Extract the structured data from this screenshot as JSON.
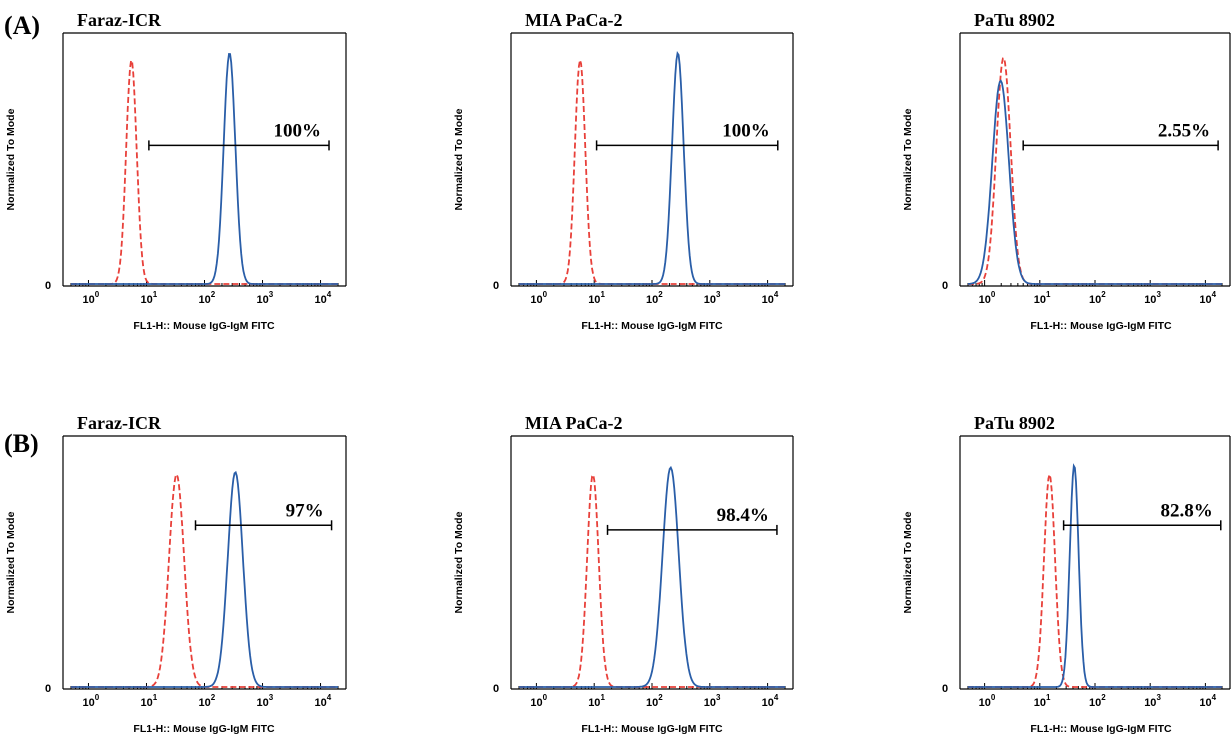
{
  "panel_labels": {
    "A": "(A)",
    "B": "(B)"
  },
  "chart_data": [
    {
      "type": "histogram",
      "panel": "A",
      "title": "Faraz-ICR",
      "xlabel": "FL1-H:: Mouse IgG-IgM FITC",
      "ylabel": "Normalized To Mode",
      "xscale": "log",
      "xlim": [
        0.5,
        20000
      ],
      "yzero_label": "0",
      "xticks": [
        {
          "base": "10",
          "exp": "0"
        },
        {
          "base": "10",
          "exp": "1"
        },
        {
          "base": "10",
          "exp": "2"
        },
        {
          "base": "10",
          "exp": "3"
        },
        {
          "base": "10",
          "exp": "4"
        }
      ],
      "control_peak": 5.5,
      "control_height": 0.97,
      "control_width": 0.09,
      "sample_peak": 270,
      "sample_height": 1.0,
      "sample_width": 0.1,
      "gate": {
        "from": 11,
        "to": 14000,
        "y": 0.6,
        "label": "100%"
      }
    },
    {
      "type": "histogram",
      "panel": "A",
      "title": "MIA PaCa-2",
      "xlabel": "FL1-H:: Mouse IgG-IgM FITC",
      "ylabel": "Normalized To Mode",
      "xscale": "log",
      "xlim": [
        0.5,
        20000
      ],
      "yzero_label": "0",
      "xticks": [
        {
          "base": "10",
          "exp": "0"
        },
        {
          "base": "10",
          "exp": "1"
        },
        {
          "base": "10",
          "exp": "2"
        },
        {
          "base": "10",
          "exp": "3"
        },
        {
          "base": "10",
          "exp": "4"
        }
      ],
      "control_peak": 5.7,
      "control_height": 0.97,
      "control_width": 0.09,
      "sample_peak": 280,
      "sample_height": 1.0,
      "sample_width": 0.1,
      "gate": {
        "from": 11,
        "to": 15000,
        "y": 0.6,
        "label": "100%"
      }
    },
    {
      "type": "histogram",
      "panel": "A",
      "title": "PaTu 8902",
      "xlabel": "FL1-H:: Mouse IgG-IgM FITC",
      "ylabel": "Normalized To Mode",
      "xscale": "log",
      "xlim": [
        0.5,
        20000
      ],
      "yzero_label": "0",
      "xticks": [
        {
          "base": "10",
          "exp": "0"
        },
        {
          "base": "10",
          "exp": "1"
        },
        {
          "base": "10",
          "exp": "2"
        },
        {
          "base": "10",
          "exp": "3"
        },
        {
          "base": "10",
          "exp": "4"
        }
      ],
      "control_peak": 2.2,
      "control_height": 0.98,
      "control_width": 0.13,
      "sample_peak": 1.95,
      "sample_height": 0.88,
      "sample_width": 0.15,
      "gate": {
        "from": 5,
        "to": 17000,
        "y": 0.6,
        "label": "2.55%"
      }
    },
    {
      "type": "histogram",
      "panel": "B",
      "title": "Faraz-ICR",
      "xlabel": "FL1-H:: Mouse IgG-IgM FITC",
      "ylabel": "Normalized To Mode",
      "xscale": "log",
      "xlim": [
        0.5,
        20000
      ],
      "yzero_label": "0",
      "xticks": [
        {
          "base": "10",
          "exp": "0"
        },
        {
          "base": "10",
          "exp": "1"
        },
        {
          "base": "10",
          "exp": "2"
        },
        {
          "base": "10",
          "exp": "3"
        },
        {
          "base": "10",
          "exp": "4"
        }
      ],
      "control_peak": 33,
      "control_height": 0.92,
      "control_width": 0.13,
      "sample_peak": 340,
      "sample_height": 0.93,
      "sample_width": 0.13,
      "gate": {
        "from": 70,
        "to": 15500,
        "y": 0.7,
        "label": "97%"
      }
    },
    {
      "type": "histogram",
      "panel": "B",
      "title": "MIA PaCa-2",
      "xlabel": "FL1-H:: Mouse IgG-IgM FITC",
      "ylabel": "Normalized To Mode",
      "xscale": "log",
      "xlim": [
        0.5,
        20000
      ],
      "yzero_label": "0",
      "xticks": [
        {
          "base": "10",
          "exp": "0"
        },
        {
          "base": "10",
          "exp": "1"
        },
        {
          "base": "10",
          "exp": "2"
        },
        {
          "base": "10",
          "exp": "3"
        },
        {
          "base": "10",
          "exp": "4"
        }
      ],
      "control_peak": 9.5,
      "control_height": 0.92,
      "control_width": 0.1,
      "sample_peak": 210,
      "sample_height": 0.95,
      "sample_width": 0.14,
      "gate": {
        "from": 17,
        "to": 14500,
        "y": 0.68,
        "label": "98.4%"
      }
    },
    {
      "type": "histogram",
      "panel": "B",
      "title": "PaTu 8902",
      "xlabel": "FL1-H:: Mouse IgG-IgM FITC",
      "ylabel": "Normalized To Mode",
      "xscale": "log",
      "xlim": [
        0.5,
        20000
      ],
      "yzero_label": "0",
      "xticks": [
        {
          "base": "10",
          "exp": "0"
        },
        {
          "base": "10",
          "exp": "1"
        },
        {
          "base": "10",
          "exp": "2"
        },
        {
          "base": "10",
          "exp": "3"
        },
        {
          "base": "10",
          "exp": "4"
        }
      ],
      "control_peak": 15,
      "control_height": 0.92,
      "control_width": 0.1,
      "sample_peak": 42,
      "sample_height": 0.96,
      "sample_width": 0.08,
      "gate": {
        "from": 27,
        "to": 19000,
        "y": 0.7,
        "label": "82.8%"
      }
    }
  ],
  "colors": {
    "control": "#e8403a",
    "sample": "#2a5ea8",
    "axis": "#000000"
  }
}
